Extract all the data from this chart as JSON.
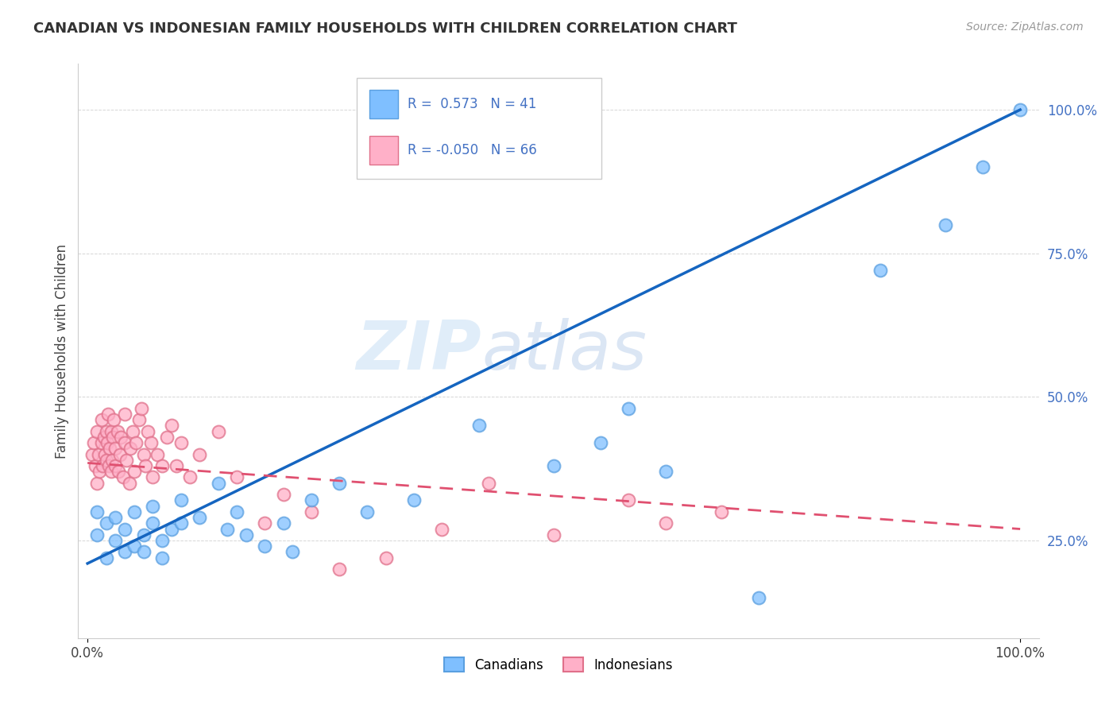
{
  "title": "CANADIAN VS INDONESIAN FAMILY HOUSEHOLDS WITH CHILDREN CORRELATION CHART",
  "source_text": "Source: ZipAtlas.com",
  "ylabel": "Family Households with Children",
  "watermark_zip": "ZIP",
  "watermark_atlas": "atlas",
  "legend": {
    "canadian_label": "Canadians",
    "indonesian_label": "Indonesians",
    "R_canadian": "0.573",
    "N_canadian": "41",
    "R_indonesian": "-0.050",
    "N_indonesian": "66"
  },
  "canadian_scatter_x": [
    0.01,
    0.01,
    0.02,
    0.02,
    0.03,
    0.03,
    0.04,
    0.04,
    0.05,
    0.05,
    0.06,
    0.06,
    0.07,
    0.07,
    0.08,
    0.08,
    0.09,
    0.1,
    0.1,
    0.12,
    0.14,
    0.15,
    0.16,
    0.17,
    0.19,
    0.21,
    0.22,
    0.24,
    0.27,
    0.3,
    0.35,
    0.42,
    0.5,
    0.55,
    0.58,
    0.62,
    0.72,
    0.85,
    0.92,
    0.96,
    1.0
  ],
  "canadian_scatter_y": [
    0.3,
    0.26,
    0.28,
    0.22,
    0.29,
    0.25,
    0.27,
    0.23,
    0.3,
    0.24,
    0.26,
    0.23,
    0.28,
    0.31,
    0.25,
    0.22,
    0.27,
    0.32,
    0.28,
    0.29,
    0.35,
    0.27,
    0.3,
    0.26,
    0.24,
    0.28,
    0.23,
    0.32,
    0.35,
    0.3,
    0.32,
    0.45,
    0.38,
    0.42,
    0.48,
    0.37,
    0.15,
    0.72,
    0.8,
    0.9,
    1.0
  ],
  "indonesian_scatter_x": [
    0.005,
    0.007,
    0.008,
    0.01,
    0.01,
    0.012,
    0.013,
    0.015,
    0.015,
    0.016,
    0.018,
    0.019,
    0.02,
    0.02,
    0.021,
    0.022,
    0.023,
    0.024,
    0.025,
    0.025,
    0.026,
    0.027,
    0.028,
    0.03,
    0.03,
    0.032,
    0.033,
    0.035,
    0.036,
    0.038,
    0.04,
    0.04,
    0.042,
    0.045,
    0.046,
    0.048,
    0.05,
    0.052,
    0.055,
    0.058,
    0.06,
    0.062,
    0.065,
    0.068,
    0.07,
    0.075,
    0.08,
    0.085,
    0.09,
    0.095,
    0.1,
    0.11,
    0.12,
    0.14,
    0.16,
    0.19,
    0.21,
    0.24,
    0.27,
    0.32,
    0.38,
    0.43,
    0.5,
    0.58,
    0.62,
    0.68
  ],
  "indonesian_scatter_y": [
    0.4,
    0.42,
    0.38,
    0.35,
    0.44,
    0.4,
    0.37,
    0.42,
    0.46,
    0.38,
    0.43,
    0.4,
    0.39,
    0.44,
    0.42,
    0.47,
    0.38,
    0.41,
    0.44,
    0.37,
    0.39,
    0.43,
    0.46,
    0.38,
    0.41,
    0.44,
    0.37,
    0.4,
    0.43,
    0.36,
    0.42,
    0.47,
    0.39,
    0.35,
    0.41,
    0.44,
    0.37,
    0.42,
    0.46,
    0.48,
    0.4,
    0.38,
    0.44,
    0.42,
    0.36,
    0.4,
    0.38,
    0.43,
    0.45,
    0.38,
    0.42,
    0.36,
    0.4,
    0.44,
    0.36,
    0.28,
    0.33,
    0.3,
    0.2,
    0.22,
    0.27,
    0.35,
    0.26,
    0.32,
    0.28,
    0.3
  ],
  "canadian_line_x": [
    0.0,
    1.0
  ],
  "canadian_line_y": [
    0.21,
    1.0
  ],
  "indonesian_line_x": [
    0.0,
    1.0
  ],
  "indonesian_line_y": [
    0.385,
    0.27
  ],
  "canadian_color": "#7FBFFF",
  "canadian_edge_color": "#5A9FE0",
  "indonesian_color": "#FFB0C8",
  "indonesian_edge_color": "#E0708A",
  "canadian_line_color": "#1565C0",
  "indonesian_line_color": "#E05070",
  "background_color": "#FFFFFF",
  "grid_color": "#BBBBBB",
  "ytick_labels": [
    "25.0%",
    "50.0%",
    "75.0%",
    "100.0%"
  ],
  "ytick_values": [
    0.25,
    0.5,
    0.75,
    1.0
  ],
  "ylim": [
    0.08,
    1.08
  ],
  "xlim": [
    -0.01,
    1.02
  ]
}
